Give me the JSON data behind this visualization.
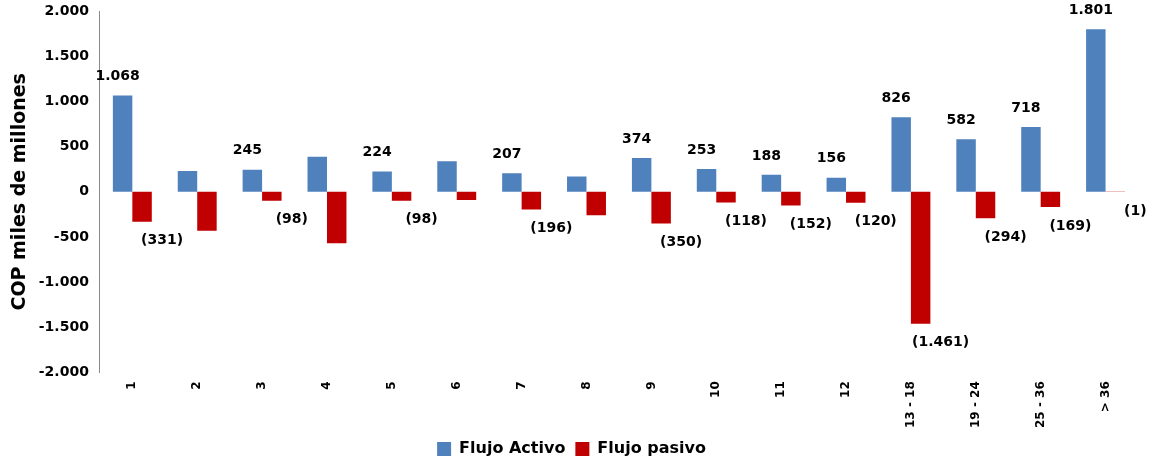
{
  "chart_data": {
    "type": "bar",
    "ylabel": "COP miles de millones",
    "categories": [
      "1",
      "2",
      "3",
      "4",
      "5",
      "6",
      "7",
      "8",
      "9",
      "10",
      "11",
      "12",
      "13 - 18",
      "19 - 24",
      "25 - 36",
      "> 36"
    ],
    "series": [
      {
        "name": "Flujo Activo",
        "color": "#4f81bd",
        "values": [
          1068,
          230,
          245,
          390,
          224,
          340,
          207,
          170,
          374,
          253,
          188,
          156,
          826,
          582,
          718,
          1801
        ],
        "value_labels": [
          "1.068",
          null,
          "245",
          null,
          "224",
          null,
          "207",
          null,
          "374",
          "253",
          "188",
          "156",
          "826",
          "582",
          "718",
          "1.801"
        ]
      },
      {
        "name": "Flujo pasivo",
        "color": "#c00000",
        "values": [
          -331,
          -430,
          -98,
          -570,
          -98,
          -90,
          -196,
          -260,
          -350,
          -118,
          -152,
          -120,
          -1461,
          -294,
          -169,
          -1
        ],
        "value_labels": [
          "(331)",
          null,
          "(98)",
          null,
          "(98)",
          null,
          "(196)",
          null,
          "(350)",
          "(118)",
          "(152)",
          "(120)",
          "(1.461)",
          "(294)",
          "(169)",
          "(1)"
        ]
      }
    ],
    "ylim": [
      -2000,
      2000
    ],
    "yticks": [
      {
        "value": -2000,
        "label": "-2.000"
      },
      {
        "value": -1500,
        "label": "-1.500"
      },
      {
        "value": -1000,
        "label": "-1.000"
      },
      {
        "value": -500,
        "label": "-500"
      },
      0,
      {
        "value": 500,
        "label": "500"
      },
      {
        "value": 1000,
        "label": "1.000"
      },
      {
        "value": 1500,
        "label": "1.500"
      },
      {
        "value": 2000,
        "label": "2.000"
      }
    ],
    "grid": false,
    "legend": "bottom"
  }
}
